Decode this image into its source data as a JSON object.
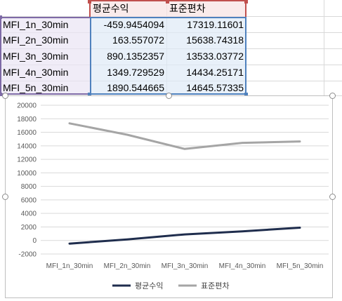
{
  "table": {
    "headers": [
      "평균수익",
      "표준편차"
    ],
    "rows": [
      {
        "label": "MFI_1n_30min",
        "mean": "-459.9454094",
        "std": "17319.11601"
      },
      {
        "label": "MFI_2n_30min",
        "mean": "163.557072",
        "std": "15638.74318"
      },
      {
        "label": "MFI_3n_30min",
        "mean": "890.1352357",
        "std": "13533.03772"
      },
      {
        "label": "MFI_4n_30min",
        "mean": "1349.729529",
        "std": "14434.25171"
      },
      {
        "label": "MFI_5n_30min",
        "mean": "1890.544665",
        "std": "14645.57335"
      }
    ]
  },
  "chart_data": {
    "type": "line",
    "categories": [
      "MFI_1n_30min",
      "MFI_2n_30min",
      "MFI_3n_30min",
      "MFI_4n_30min",
      "MFI_5n_30min"
    ],
    "series": [
      {
        "name": "평균수익",
        "color": "#1f2d4d",
        "values": [
          -459.9454094,
          163.557072,
          890.1352357,
          1349.729529,
          1890.544665
        ]
      },
      {
        "name": "표준편차",
        "color": "#a5a5a5",
        "values": [
          17319.11601,
          15638.74318,
          13533.03772,
          14434.25171,
          14645.57335
        ]
      }
    ],
    "yticks": [
      "20000",
      "18000",
      "16000",
      "14000",
      "12000",
      "10000",
      "8000",
      "6000",
      "4000",
      "2000",
      "0",
      "-2000"
    ],
    "ylim": [
      -2000,
      20000
    ],
    "grid": true,
    "legend": "bottom"
  },
  "colors": {
    "sel_label": "#7e6aa6",
    "sel_values": "#4f81bd",
    "sel_header": "#c0504d"
  }
}
